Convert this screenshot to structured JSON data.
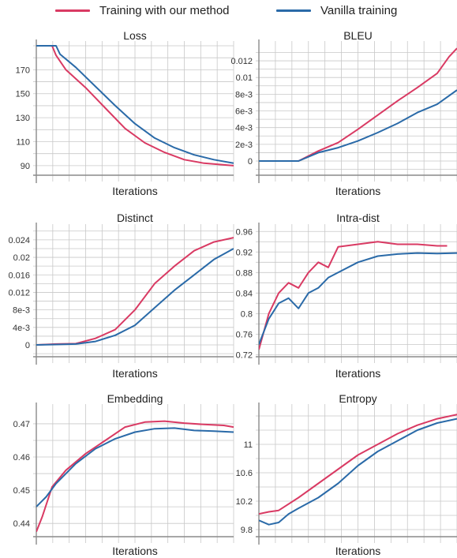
{
  "legend": {
    "ours": {
      "label": "Training with our method",
      "color": "#d93a63"
    },
    "vanilla": {
      "label": "Vanilla training",
      "color": "#2a6aa8"
    }
  },
  "chart_data": [
    {
      "type": "line",
      "title": "Loss",
      "xlabel": "Iterations",
      "ylabel": "",
      "grid": true,
      "ylim": [
        82,
        190
      ],
      "yticks": [
        90,
        110,
        130,
        150,
        170
      ],
      "ytick_labels": [
        "90",
        "110",
        "130",
        "150",
        "170"
      ],
      "series": [
        {
          "name": "Training with our method",
          "x": [
            0,
            0.08,
            0.1,
            0.15,
            0.25,
            0.35,
            0.45,
            0.55,
            0.65,
            0.75,
            0.85,
            1
          ],
          "values": [
            190,
            190,
            182,
            170,
            155,
            138,
            121,
            109,
            101,
            95,
            92,
            90
          ]
        },
        {
          "name": "Vanilla training",
          "x": [
            0,
            0.1,
            0.12,
            0.2,
            0.3,
            0.4,
            0.5,
            0.6,
            0.7,
            0.8,
            0.9,
            1
          ],
          "values": [
            190,
            190,
            183,
            172,
            156,
            140,
            125,
            113,
            105,
            99,
            95,
            92
          ]
        }
      ]
    },
    {
      "type": "line",
      "title": "BLEU",
      "xlabel": "Iterations",
      "ylabel": "",
      "grid": true,
      "ylim": [
        -0.0017,
        0.0138
      ],
      "yticks": [
        0,
        0.002,
        0.004,
        0.006,
        0.008,
        0.01,
        0.012
      ],
      "ytick_labels": [
        "0",
        "2e-3",
        "4e-3",
        "6e-3",
        "8e-3",
        "0.01",
        "0.012"
      ],
      "series": [
        {
          "name": "Training with our method",
          "x": [
            0,
            0.2,
            0.3,
            0.4,
            0.5,
            0.6,
            0.7,
            0.8,
            0.9,
            0.96,
            1
          ],
          "values": [
            0,
            0,
            0.0012,
            0.0022,
            0.0038,
            0.0055,
            0.0072,
            0.0088,
            0.0105,
            0.0125,
            0.0135
          ]
        },
        {
          "name": "Vanilla training",
          "x": [
            0,
            0.2,
            0.3,
            0.4,
            0.5,
            0.6,
            0.7,
            0.8,
            0.9,
            1
          ],
          "values": [
            0,
            0,
            0.001,
            0.0016,
            0.0024,
            0.0034,
            0.0045,
            0.0058,
            0.0068,
            0.0085
          ]
        }
      ]
    },
    {
      "type": "line",
      "title": "Distinct",
      "xlabel": "Iterations",
      "ylabel": "",
      "grid": true,
      "ylim": [
        -0.0027,
        0.0265
      ],
      "yticks": [
        0,
        0.004,
        0.008,
        0.012,
        0.016,
        0.02,
        0.024
      ],
      "ytick_labels": [
        "0",
        "4e-3",
        "8e-3",
        "0.012",
        "0.016",
        "0.02",
        "0.024"
      ],
      "series": [
        {
          "name": "Training with our method",
          "x": [
            0,
            0.1,
            0.2,
            0.3,
            0.4,
            0.5,
            0.6,
            0.7,
            0.8,
            0.9,
            1
          ],
          "values": [
            0,
            0.0002,
            0.0003,
            0.0015,
            0.0035,
            0.008,
            0.014,
            0.018,
            0.0215,
            0.0235,
            0.0245
          ]
        },
        {
          "name": "Vanilla training",
          "x": [
            0,
            0.1,
            0.2,
            0.3,
            0.4,
            0.5,
            0.6,
            0.7,
            0.8,
            0.9,
            1
          ],
          "values": [
            0,
            0.0001,
            0.0002,
            0.0008,
            0.0022,
            0.0045,
            0.0085,
            0.0125,
            0.016,
            0.0195,
            0.022
          ]
        }
      ]
    },
    {
      "type": "line",
      "title": "Intra-dist",
      "xlabel": "Iterations",
      "ylabel": "",
      "grid": true,
      "ylim": [
        0.716,
        0.965
      ],
      "yticks": [
        0.72,
        0.76,
        0.8,
        0.84,
        0.88,
        0.92,
        0.96
      ],
      "ytick_labels": [
        "0.72",
        "0.76",
        "0.8",
        "0.84",
        "0.88",
        "0.92",
        "0.96"
      ],
      "series": [
        {
          "name": "Training with our method",
          "x": [
            0,
            0.05,
            0.1,
            0.15,
            0.2,
            0.25,
            0.3,
            0.35,
            0.4,
            0.5,
            0.6,
            0.7,
            0.8,
            0.9,
            0.95
          ],
          "values": [
            0.73,
            0.8,
            0.84,
            0.86,
            0.85,
            0.88,
            0.9,
            0.89,
            0.93,
            0.935,
            0.94,
            0.935,
            0.935,
            0.932,
            0.932
          ]
        },
        {
          "name": "Vanilla training",
          "x": [
            0,
            0.05,
            0.1,
            0.15,
            0.2,
            0.25,
            0.3,
            0.35,
            0.4,
            0.5,
            0.6,
            0.7,
            0.8,
            0.9,
            1
          ],
          "values": [
            0.74,
            0.79,
            0.82,
            0.83,
            0.81,
            0.84,
            0.85,
            0.87,
            0.88,
            0.9,
            0.912,
            0.916,
            0.918,
            0.917,
            0.918
          ]
        }
      ]
    },
    {
      "type": "line",
      "title": "Embedding",
      "xlabel": "Iterations",
      "ylabel": "",
      "grid": true,
      "ylim": [
        0.436,
        0.4745
      ],
      "yticks": [
        0.44,
        0.45,
        0.46,
        0.47
      ],
      "ytick_labels": [
        "0.44",
        "0.45",
        "0.46",
        "0.47"
      ],
      "series": [
        {
          "name": "Training with our method",
          "x": [
            0,
            0.03,
            0.08,
            0.15,
            0.25,
            0.35,
            0.45,
            0.55,
            0.65,
            0.75,
            0.85,
            0.95,
            1
          ],
          "values": [
            0.4375,
            0.442,
            0.451,
            0.456,
            0.461,
            0.465,
            0.469,
            0.4705,
            0.4708,
            0.4702,
            0.4698,
            0.4695,
            0.469
          ]
        },
        {
          "name": "Vanilla training",
          "x": [
            0,
            0.05,
            0.1,
            0.2,
            0.3,
            0.4,
            0.5,
            0.6,
            0.7,
            0.8,
            0.9,
            1
          ],
          "values": [
            0.445,
            0.448,
            0.452,
            0.458,
            0.4625,
            0.4655,
            0.4675,
            0.4685,
            0.4687,
            0.468,
            0.4678,
            0.4675
          ]
        }
      ]
    },
    {
      "type": "line",
      "title": "Entropy",
      "xlabel": "Iterations",
      "ylabel": "",
      "grid": true,
      "ylim": [
        9.7,
        11.5
      ],
      "yticks": [
        9.8,
        10.2,
        10.6,
        11
      ],
      "ytick_labels": [
        "9.8",
        "10.2",
        "10.6",
        "11"
      ],
      "series": [
        {
          "name": "Training with our method",
          "x": [
            0,
            0.05,
            0.1,
            0.2,
            0.3,
            0.4,
            0.5,
            0.6,
            0.7,
            0.8,
            0.9,
            1
          ],
          "values": [
            10.02,
            10.05,
            10.07,
            10.25,
            10.45,
            10.65,
            10.85,
            11.0,
            11.15,
            11.27,
            11.36,
            11.42
          ]
        },
        {
          "name": "Vanilla training",
          "x": [
            0,
            0.05,
            0.1,
            0.15,
            0.2,
            0.3,
            0.4,
            0.5,
            0.6,
            0.7,
            0.8,
            0.9,
            1
          ],
          "values": [
            9.93,
            9.87,
            9.9,
            10.02,
            10.1,
            10.25,
            10.45,
            10.7,
            10.9,
            11.05,
            11.2,
            11.3,
            11.36
          ]
        }
      ]
    }
  ]
}
